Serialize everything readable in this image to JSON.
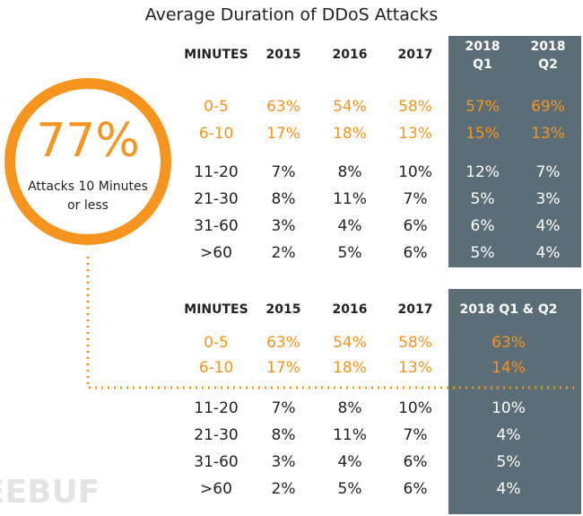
{
  "title": "Average Duration of DDoS Attacks",
  "callout": {
    "value": "77%",
    "label": [
      "Attacks 10 Minutes",
      "or less"
    ]
  },
  "table1": {
    "headers": [
      [
        "MINUTES"
      ],
      [
        "2015"
      ],
      [
        "2016"
      ],
      [
        "2017"
      ],
      [
        "2018",
        "Q1"
      ],
      [
        "2018",
        "Q2"
      ]
    ],
    "rows": [
      [
        "0-5",
        "63%",
        "54%",
        "58%",
        "57%",
        "69%"
      ],
      [
        "6-10",
        "17%",
        "18%",
        "13%",
        "15%",
        "13%"
      ],
      [
        "11-20",
        "7%",
        "8%",
        "10%",
        "12%",
        "7%"
      ],
      [
        "21-30",
        "8%",
        "11%",
        "7%",
        "5%",
        "3%"
      ],
      [
        "31-60",
        "3%",
        "4%",
        "6%",
        "6%",
        "4%"
      ],
      [
        ">60",
        "2%",
        "5%",
        "6%",
        "5%",
        "4%"
      ]
    ]
  },
  "table2": {
    "headers": [
      "MINUTES",
      "2015",
      "2016",
      "2017",
      "2018 Q1 & Q2"
    ],
    "rows": [
      [
        "0-5",
        "63%",
        "54%",
        "58%",
        "63%"
      ],
      [
        "6-10",
        "17%",
        "18%",
        "13%",
        "14%"
      ],
      [
        "11-20",
        "7%",
        "8%",
        "10%",
        "10%"
      ],
      [
        "21-30",
        "8%",
        "11%",
        "7%",
        "4%"
      ],
      [
        "31-60",
        "3%",
        "4%",
        "6%",
        "5%"
      ],
      [
        ">60",
        "2%",
        "5%",
        "6%",
        "4%"
      ]
    ]
  },
  "watermark": "FREEBUF"
}
